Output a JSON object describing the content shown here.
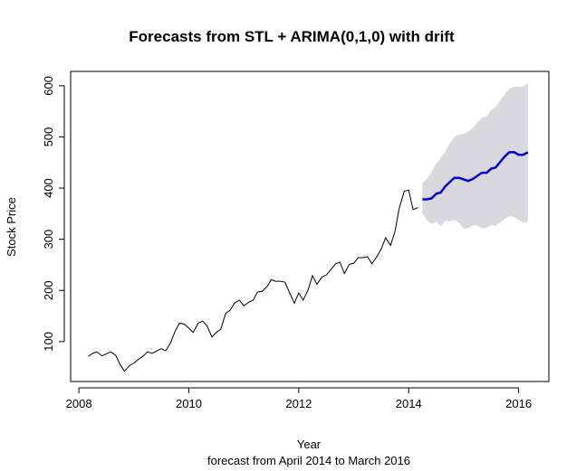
{
  "chart_data": {
    "type": "line",
    "title": "Forecasts from STL +  ARIMA(0,1,0) with drift",
    "xlabel": "Year",
    "ylabel": "Stock Price",
    "subtitle": "forecast from April 2014 to March 2016",
    "xlim": [
      2007.85,
      2016.55
    ],
    "ylim": [
      22,
      628
    ],
    "x_ticks": [
      2008,
      2010,
      2012,
      2014,
      2016
    ],
    "x_tick_labels": [
      "2008",
      "2010",
      "2012",
      "2014",
      "2016"
    ],
    "y_ticks": [
      100,
      200,
      300,
      400,
      500,
      600
    ],
    "y_tick_labels": [
      "100",
      "200",
      "300",
      "400",
      "500",
      "600"
    ],
    "colors": {
      "history": "#000000",
      "forecast": "#0000cc",
      "interval": "#d8d8de"
    },
    "series": [
      {
        "name": "Historical stock price",
        "x": [
          2008.17,
          2008.25,
          2008.33,
          2008.42,
          2008.5,
          2008.58,
          2008.67,
          2008.75,
          2008.83,
          2008.92,
          2009.0,
          2009.08,
          2009.17,
          2009.25,
          2009.33,
          2009.42,
          2009.5,
          2009.58,
          2009.67,
          2009.75,
          2009.83,
          2009.92,
          2010.0,
          2010.08,
          2010.17,
          2010.25,
          2010.33,
          2010.42,
          2010.5,
          2010.58,
          2010.67,
          2010.75,
          2010.83,
          2010.92,
          2011.0,
          2011.08,
          2011.17,
          2011.25,
          2011.33,
          2011.42,
          2011.5,
          2011.58,
          2011.67,
          2011.75,
          2011.83,
          2011.92,
          2012.0,
          2012.08,
          2012.17,
          2012.25,
          2012.33,
          2012.42,
          2012.5,
          2012.58,
          2012.67,
          2012.75,
          2012.83,
          2012.92,
          2013.0,
          2013.08,
          2013.17,
          2013.25,
          2013.33,
          2013.42,
          2013.5,
          2013.58,
          2013.67,
          2013.75,
          2013.83,
          2013.92,
          2014.0,
          2014.08,
          2014.17
        ],
        "values": [
          71,
          77,
          80,
          72,
          76,
          80,
          73,
          55,
          42,
          53,
          58,
          65,
          72,
          80,
          77,
          82,
          86,
          82,
          98,
          120,
          136,
          134,
          126,
          118,
          136,
          140,
          131,
          109,
          118,
          124,
          155,
          161,
          175,
          181,
          170,
          176,
          181,
          197,
          198,
          207,
          221,
          218,
          218,
          216,
          196,
          175,
          195,
          181,
          201,
          229,
          212,
          226,
          230,
          240,
          252,
          255,
          233,
          251,
          253,
          264,
          264,
          266,
          252,
          266,
          281,
          303,
          288,
          315,
          362,
          394,
          396,
          358,
          362
        ]
      },
      {
        "name": "Point forecast",
        "x": [
          2014.25,
          2014.33,
          2014.42,
          2014.5,
          2014.58,
          2014.67,
          2014.75,
          2014.83,
          2014.92,
          2015.0,
          2015.08,
          2015.17,
          2015.25,
          2015.33,
          2015.42,
          2015.5,
          2015.58,
          2015.67,
          2015.75,
          2015.83,
          2015.92,
          2016.0,
          2016.08,
          2016.17
        ],
        "values": [
          378,
          378,
          380,
          389,
          391,
          404,
          412,
          420,
          420,
          417,
          414,
          418,
          424,
          430,
          430,
          438,
          440,
          452,
          462,
          470,
          470,
          465,
          465,
          470
        ]
      },
      {
        "name": "Upper prediction interval",
        "x": [
          2014.25,
          2014.33,
          2014.42,
          2014.5,
          2014.58,
          2014.67,
          2014.75,
          2014.83,
          2014.92,
          2015.0,
          2015.08,
          2015.17,
          2015.25,
          2015.33,
          2015.42,
          2015.5,
          2015.58,
          2015.67,
          2015.75,
          2015.83,
          2015.92,
          2016.0,
          2016.08,
          2016.17
        ],
        "values": [
          410,
          418,
          432,
          448,
          458,
          472,
          488,
          500,
          505,
          506,
          510,
          518,
          528,
          538,
          540,
          552,
          558,
          572,
          584,
          594,
          598,
          598,
          598,
          605
        ]
      },
      {
        "name": "Lower prediction interval",
        "x": [
          2014.25,
          2014.33,
          2014.42,
          2014.5,
          2014.58,
          2014.67,
          2014.75,
          2014.83,
          2014.92,
          2015.0,
          2015.08,
          2015.17,
          2015.25,
          2015.33,
          2015.42,
          2015.5,
          2015.58,
          2015.67,
          2015.75,
          2015.83,
          2015.92,
          2016.0,
          2016.08,
          2016.17
        ],
        "values": [
          350,
          337,
          330,
          335,
          325,
          336,
          335,
          338,
          332,
          320,
          322,
          327,
          327,
          321,
          322,
          328,
          326,
          333,
          340,
          345,
          343,
          338,
          332,
          334
        ]
      }
    ]
  }
}
